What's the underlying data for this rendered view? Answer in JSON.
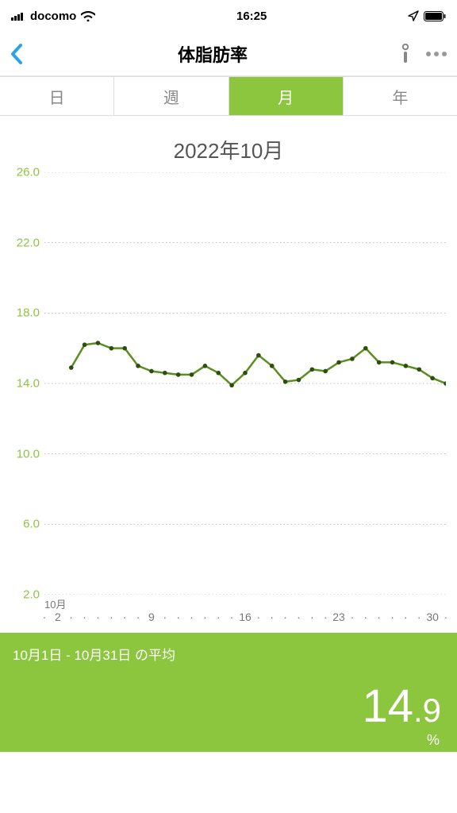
{
  "status": {
    "carrier": "docomo",
    "time": "16:25"
  },
  "nav": {
    "title": "体脂肪率"
  },
  "seg": {
    "items": [
      "日",
      "週",
      "月",
      "年"
    ],
    "active_index": 2,
    "active_bg": "#8cc63f"
  },
  "chart": {
    "type": "line",
    "title": "2022年10月",
    "ylim": [
      2.0,
      26.0
    ],
    "yticks": [
      26.0,
      22.0,
      18.0,
      14.0,
      10.0,
      6.0,
      2.0
    ],
    "ytick_labels": [
      "26.0",
      "22.0",
      "18.0",
      "14.0",
      "10.0",
      "6.0",
      "2.0"
    ],
    "ytick_color": "#8cc63f",
    "grid_color": "#bfbfbf",
    "line_color": "#5a8f1f",
    "marker_color": "#2e4e10",
    "line_width": 2.5,
    "marker_radius": 2.8,
    "background_color": "#ffffff",
    "x_month_label": "10月",
    "x_days_range": [
      1,
      31
    ],
    "x_major_ticks": [
      2,
      9,
      16,
      23,
      30
    ],
    "data": [
      {
        "day": 3,
        "val": 14.9
      },
      {
        "day": 4,
        "val": 16.2
      },
      {
        "day": 5,
        "val": 16.3
      },
      {
        "day": 6,
        "val": 16.0
      },
      {
        "day": 7,
        "val": 16.0
      },
      {
        "day": 8,
        "val": 15.0
      },
      {
        "day": 9,
        "val": 14.7
      },
      {
        "day": 10,
        "val": 14.6
      },
      {
        "day": 11,
        "val": 14.5
      },
      {
        "day": 12,
        "val": 14.5
      },
      {
        "day": 13,
        "val": 15.0
      },
      {
        "day": 14,
        "val": 14.6
      },
      {
        "day": 15,
        "val": 13.9
      },
      {
        "day": 16,
        "val": 14.6
      },
      {
        "day": 17,
        "val": 15.6
      },
      {
        "day": 18,
        "val": 15.0
      },
      {
        "day": 19,
        "val": 14.1
      },
      {
        "day": 20,
        "val": 14.2
      },
      {
        "day": 21,
        "val": 14.8
      },
      {
        "day": 22,
        "val": 14.7
      },
      {
        "day": 23,
        "val": 15.2
      },
      {
        "day": 24,
        "val": 15.4
      },
      {
        "day": 25,
        "val": 16.0
      },
      {
        "day": 26,
        "val": 15.2
      },
      {
        "day": 27,
        "val": 15.2
      },
      {
        "day": 28,
        "val": 15.0
      },
      {
        "day": 29,
        "val": 14.8
      },
      {
        "day": 30,
        "val": 14.3
      },
      {
        "day": 31,
        "val": 14.0
      }
    ]
  },
  "summary": {
    "label": "10月1日 - 10月31日 の平均",
    "value_int": "14",
    "value_dec": ".9",
    "unit": "%",
    "bg": "#8cc63f"
  }
}
